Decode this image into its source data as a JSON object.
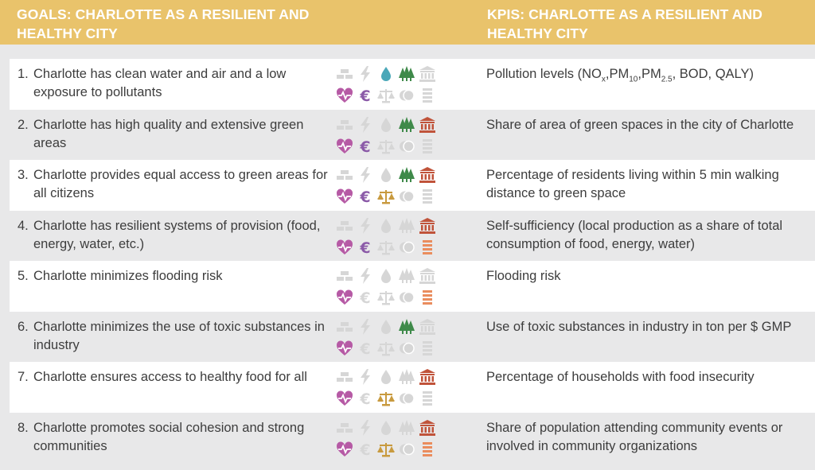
{
  "header": {
    "goals_title": "GOALS: CHARLOTTE AS A RESILIENT AND HEALTHY CITY",
    "kpis_title": "KPIS: CHARLOTTE AS A RESILIENT AND HEALTHY CITY"
  },
  "icon_names": [
    "gold-bars-icon",
    "lightning-icon",
    "water-drop-icon",
    "trees-icon",
    "institution-icon",
    "heart-pulse-icon",
    "euro-icon",
    "scales-icon",
    "circles-icon",
    "stack-icon"
  ],
  "colors": {
    "header": "#e9c36b",
    "inactive": "#d6d6d6",
    "water": "#4aa7b8",
    "trees": "#3f8a4a",
    "institution": "#c0533a",
    "heart": "#b65aa5",
    "euro": "#8b5aa8",
    "scales": "#c89a3f",
    "stack": "#ea8d5e"
  },
  "rows": [
    {
      "num": "1.",
      "goal": "Charlotte has clean water and air and a low exposure to pollutants",
      "kpi_parts": [
        "Pollution levels (NO",
        "x",
        ",PM",
        "10",
        ",PM",
        "2.5",
        ", BOD, QALY)"
      ],
      "active": [
        false,
        false,
        true,
        true,
        false,
        true,
        true,
        false,
        false,
        false
      ]
    },
    {
      "num": "2.",
      "goal": "Charlotte has high quality and extensive green areas",
      "kpi": "Share of area of green spaces in the city of Charlotte",
      "active": [
        false,
        false,
        false,
        true,
        true,
        true,
        true,
        false,
        false,
        false
      ]
    },
    {
      "num": "3.",
      "goal": "Charlotte provides equal access to green areas for all citizens",
      "kpi": "Percentage of residents living within 5 min walking distance to green space",
      "active": [
        false,
        false,
        false,
        true,
        true,
        true,
        true,
        true,
        false,
        false
      ]
    },
    {
      "num": "4.",
      "goal": "Charlotte has resilient systems of provision (food, energy, water, etc.)",
      "kpi": "Self-sufficiency (local production as a share of total consumption of food, energy, water)",
      "active": [
        false,
        false,
        false,
        false,
        true,
        true,
        true,
        false,
        false,
        true
      ]
    },
    {
      "num": "5.",
      "goal": "Charlotte minimizes flooding risk",
      "kpi": "Flooding risk",
      "active": [
        false,
        false,
        false,
        false,
        false,
        true,
        false,
        false,
        false,
        true
      ]
    },
    {
      "num": "6.",
      "goal": "Charlotte minimizes the use of toxic substances in industry",
      "kpi": "Use of toxic substances in industry in ton per $ GMP",
      "active": [
        false,
        false,
        false,
        true,
        false,
        true,
        false,
        false,
        false,
        false
      ]
    },
    {
      "num": "7.",
      "goal": "Charlotte ensures access to healthy food for all",
      "kpi": "Percentage of households with food insecurity",
      "active": [
        false,
        false,
        false,
        false,
        true,
        true,
        false,
        true,
        false,
        false
      ]
    },
    {
      "num": "8.",
      "goal": "Charlotte promotes social cohesion and strong communities",
      "kpi": "Share of population attending community events or involved in community organizations",
      "active": [
        false,
        false,
        false,
        false,
        true,
        true,
        false,
        true,
        false,
        true
      ]
    }
  ]
}
